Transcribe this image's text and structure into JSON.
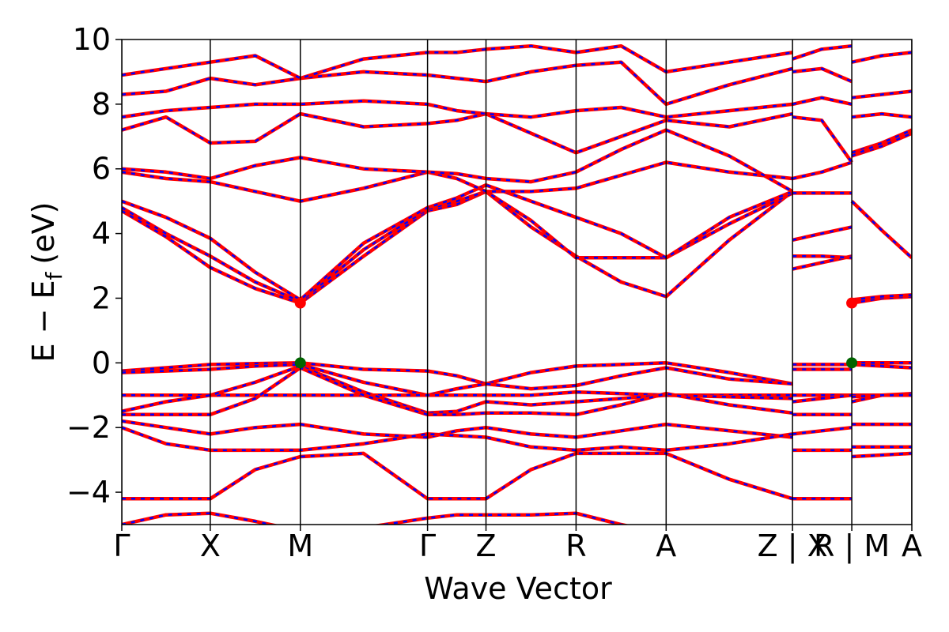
{
  "chart_data": {
    "type": "band_structure",
    "x_label": "Wave Vector",
    "y_label": {
      "main": "E − E",
      "subscript": "f",
      "unit": "(eV)"
    },
    "xlim": [
      0,
      1
    ],
    "ylim": [
      -5,
      10
    ],
    "xticks": [
      {
        "value": 0,
        "label": "Γ"
      },
      {
        "value": 0.112,
        "label": "X"
      },
      {
        "value": 0.226,
        "label": "M"
      },
      {
        "value": 0.387,
        "label": "Γ"
      },
      {
        "value": 0.461,
        "label": "Z"
      },
      {
        "value": 0.575,
        "label": "R"
      },
      {
        "value": 0.689,
        "label": "A"
      },
      {
        "value": 0.849,
        "label": "Z | X"
      },
      {
        "value": 0.924,
        "label": "R | M"
      },
      {
        "value": 1,
        "label": "A"
      }
    ],
    "yticks": [
      {
        "value": -4,
        "label": "−4"
      },
      {
        "value": -2,
        "label": "−2"
      },
      0,
      2,
      4,
      6,
      8,
      10
    ],
    "line_color": "#ff0000",
    "overlay_color": "#0000ff",
    "x": [
      0,
      0.056,
      0.112,
      0.169,
      0.226,
      0.306,
      0.387,
      0.424,
      0.461,
      0.518,
      0.575,
      0.632,
      0.689,
      0.769,
      0.849,
      0.849,
      0.849,
      0.886,
      0.924,
      0.924,
      0.924,
      0.962,
      1
    ],
    "bands": [
      {
        "values": [
          4.7,
          3.9,
          2.95,
          2.3,
          1.85,
          3.3,
          4.7,
          4.9,
          5.3,
          4.2,
          3.3,
          2.5,
          2.05,
          3.8,
          5.3,
          null,
          2.9,
          3.1,
          3.3,
          null,
          1.85,
          2.0,
          2.05
        ]
      },
      {
        "values": [
          4.8,
          4.0,
          3.3,
          2.5,
          1.9,
          3.5,
          4.75,
          5.0,
          5.3,
          4.4,
          3.25,
          3.25,
          3.25,
          4.3,
          5.25,
          null,
          3.3,
          3.3,
          3.25,
          null,
          5.0,
          4.1,
          3.25
        ]
      },
      {
        "values": [
          5.0,
          4.5,
          3.85,
          2.8,
          1.95,
          3.7,
          4.8,
          5.1,
          5.5,
          5.0,
          4.5,
          4.0,
          3.25,
          4.5,
          5.3,
          null,
          3.8,
          4.0,
          4.2,
          null,
          1.95,
          2.05,
          2.1
        ]
      },
      {
        "values": [
          5.9,
          5.7,
          5.6,
          5.3,
          5.0,
          5.4,
          5.9,
          5.7,
          5.3,
          5.3,
          5.4,
          5.8,
          6.2,
          5.9,
          5.7,
          null,
          5.7,
          5.9,
          6.2,
          null,
          6.5,
          6.8,
          7.1
        ]
      },
      {
        "values": [
          6.0,
          5.9,
          5.7,
          6.1,
          6.35,
          6.0,
          5.9,
          5.85,
          5.7,
          5.6,
          5.9,
          6.6,
          7.2,
          6.4,
          5.3,
          null,
          5.25,
          5.25,
          5.25,
          null,
          6.4,
          6.7,
          7.1
        ]
      },
      {
        "values": [
          7.2,
          7.6,
          6.8,
          6.85,
          7.7,
          7.3,
          7.4,
          7.5,
          7.7,
          7.1,
          6.5,
          7.0,
          7.5,
          7.3,
          7.7,
          null,
          7.6,
          7.5,
          6.2,
          null,
          6.4,
          6.8,
          7.2
        ]
      },
      {
        "values": [
          7.6,
          7.8,
          7.9,
          8.0,
          8.0,
          8.1,
          8.0,
          7.8,
          7.7,
          7.6,
          7.8,
          7.9,
          7.6,
          7.8,
          8.0,
          null,
          8.0,
          8.2,
          8.0,
          null,
          7.6,
          7.7,
          7.6
        ]
      },
      {
        "values": [
          8.3,
          8.4,
          8.8,
          8.6,
          8.8,
          9.0,
          8.9,
          8.8,
          8.7,
          9.0,
          9.2,
          9.3,
          8.0,
          8.6,
          9.1,
          null,
          9.0,
          9.1,
          8.7,
          null,
          8.2,
          8.3,
          8.4
        ]
      },
      {
        "values": [
          8.9,
          9.1,
          9.3,
          9.5,
          8.8,
          9.4,
          9.6,
          9.6,
          9.7,
          9.8,
          9.6,
          9.8,
          9.0,
          9.3,
          9.6,
          null,
          9.4,
          9.7,
          9.8,
          null,
          9.3,
          9.5,
          9.6
        ]
      },
      {
        "values": [
          -0.25,
          -0.15,
          -0.05,
          -0.02,
          0,
          -0.2,
          -0.25,
          -0.4,
          -0.65,
          -0.3,
          -0.1,
          -0.05,
          0,
          -0.3,
          -0.65,
          null,
          -0.05,
          -0.05,
          -0.05,
          null,
          0,
          0,
          0
        ]
      },
      {
        "values": [
          -0.3,
          -0.25,
          -0.2,
          -0.1,
          -0.05,
          -0.6,
          -1.0,
          -0.8,
          -0.65,
          -0.8,
          -0.7,
          -0.4,
          -0.15,
          -0.5,
          -0.65,
          null,
          -0.2,
          -0.2,
          -0.2,
          null,
          -0.05,
          -0.1,
          -0.15
        ]
      },
      {
        "values": [
          -1.0,
          -1.0,
          -1.0,
          -1.0,
          -1.0,
          -1.0,
          -1.0,
          -1.0,
          -1.0,
          -1.0,
          -0.9,
          -0.95,
          -1.0,
          -1.0,
          -1.0,
          null,
          -1.0,
          -1.0,
          -1.0,
          null,
          -1.0,
          -1.0,
          -0.95
        ]
      },
      {
        "values": [
          -1.5,
          -1.2,
          -1.0,
          -0.6,
          -0.1,
          -0.9,
          -1.55,
          -1.5,
          -1.2,
          -1.3,
          -1.2,
          -1.1,
          -1.0,
          -1.05,
          -1.1,
          null,
          -1.2,
          -1.1,
          -1.0,
          null,
          -1.2,
          -1.0,
          -1.0
        ]
      },
      {
        "values": [
          -1.6,
          -1.6,
          -1.6,
          -1.1,
          -0.15,
          -1.0,
          -1.6,
          -1.6,
          -1.55,
          -1.55,
          -1.6,
          -1.3,
          -0.95,
          -1.3,
          -1.55,
          null,
          -1.6,
          -1.6,
          -1.6,
          null,
          -1.05,
          -1.0,
          -1.0
        ]
      },
      {
        "values": [
          -1.8,
          -2.0,
          -2.2,
          -2.0,
          -1.9,
          -2.2,
          -2.3,
          -2.1,
          -2.0,
          -2.2,
          -2.3,
          -2.1,
          -1.9,
          -2.1,
          -2.3,
          null,
          -2.2,
          -2.1,
          -2.0,
          null,
          -1.9,
          -1.9,
          -1.9
        ]
      },
      {
        "values": [
          -2.0,
          -2.5,
          -2.7,
          -2.7,
          -2.7,
          -2.5,
          -2.2,
          -2.25,
          -2.3,
          -2.6,
          -2.7,
          -2.6,
          -2.7,
          -2.5,
          -2.2,
          null,
          -2.7,
          -2.7,
          -2.7,
          null,
          -2.6,
          -2.6,
          -2.6
        ]
      },
      {
        "values": [
          -4.2,
          -4.2,
          -4.2,
          -3.3,
          -2.9,
          -2.8,
          -4.2,
          -4.2,
          -4.2,
          -3.3,
          -2.8,
          -2.8,
          -2.8,
          -3.6,
          -4.2,
          null,
          -4.2,
          -4.2,
          -4.2,
          null,
          -2.9,
          -2.85,
          -2.8
        ]
      },
      {
        "values": [
          -5.0,
          -4.7,
          -4.65,
          -4.9,
          -5.2,
          -5.1,
          -4.8,
          -4.7,
          -4.7,
          -4.7,
          -4.65,
          -5.0,
          -5.3,
          -5.3,
          -5.2,
          null,
          -5.2,
          -5.2,
          -5.2,
          null,
          -5.2,
          -5.2,
          -5.2
        ]
      }
    ],
    "markers": [
      {
        "x": 0.226,
        "y": 0,
        "color": "#006400"
      },
      {
        "x": 0.924,
        "y": 0,
        "color": "#006400"
      },
      {
        "x": 0.226,
        "y": 1.85,
        "color": "#ff0000"
      },
      {
        "x": 0.924,
        "y": 1.85,
        "color": "#ff0000"
      }
    ]
  }
}
